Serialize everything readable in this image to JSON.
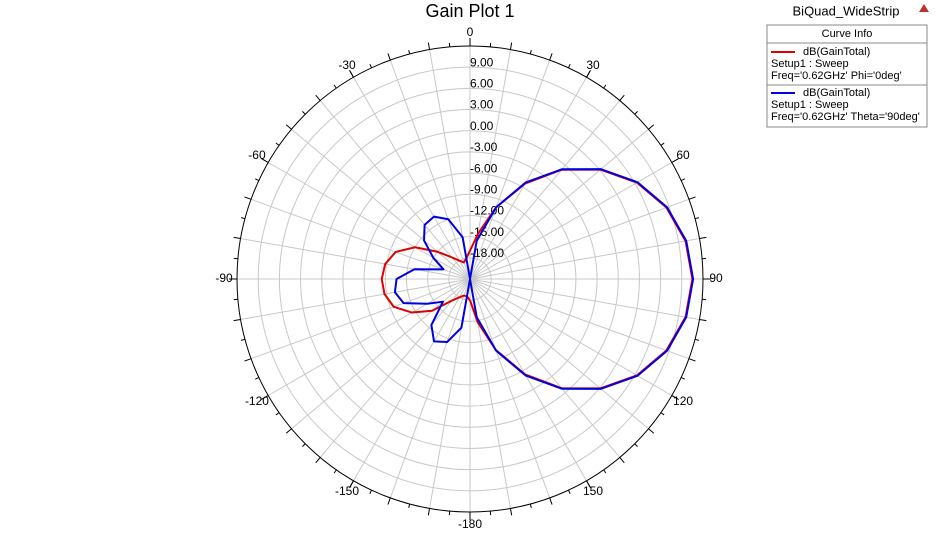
{
  "chart_data": {
    "type": "polar",
    "title": "Gain Plot 1",
    "project": "BiQuad_WideStrip",
    "legend_title": "Curve Info",
    "x": [
      -180,
      -170,
      -160,
      -150,
      -140,
      -130,
      -120,
      -110,
      -100,
      -90,
      -80,
      -70,
      -60,
      -50,
      -40,
      -30,
      -20,
      -10,
      0,
      10,
      20,
      30,
      40,
      50,
      60,
      70,
      80,
      90,
      100,
      110,
      120,
      130,
      140,
      150,
      160,
      170,
      180
    ],
    "series": [
      {
        "name": "dB(GainTotal)",
        "setup": "Setup1 : Sweep",
        "freq": "Freq='0.62GHz' Phi='0deg'",
        "color": "#e00000",
        "values": [
          -18,
          -18.5,
          -18.5,
          -18,
          -17,
          -14,
          -11.5,
          -9.5,
          -8.7,
          -8.5,
          -8.8,
          -9.8,
          -12,
          -15,
          -17,
          -18,
          -18.5,
          -18,
          -17,
          -14.5,
          -10.2,
          -5.4,
          -0.8,
          3.1,
          6.3,
          8.6,
          10.0,
          10.5,
          10.0,
          8.6,
          6.3,
          3.1,
          -0.8,
          -5.4,
          -10.3,
          -14.8,
          -18
        ]
      },
      {
        "name": "dB(GainTotal)",
        "setup": "Setup1 : Sweep",
        "freq": "Freq='0.62GHz' Theta='90deg'",
        "color": "#0000e0",
        "values": [
          -21,
          -14,
          -11.5,
          -10.8,
          -12.5,
          -16,
          -14,
          -11,
          -10.2,
          -10.6,
          -13,
          -17,
          -15,
          -12.5,
          -11,
          -10.8,
          -12,
          -15,
          -21,
          -15.5,
          -10.2,
          -5.2,
          -0.7,
          3.2,
          6.4,
          8.7,
          10.1,
          10.6,
          10.1,
          8.7,
          6.4,
          3.2,
          -0.7,
          -5.2,
          -10.2,
          -15.5,
          -21
        ]
      }
    ],
    "rlim": [
      -21,
      12
    ],
    "rticks": [
      {
        "value": -18,
        "label": "-18.00"
      },
      {
        "value": -15,
        "label": "-15.00"
      },
      {
        "value": -12,
        "label": "-12.00"
      },
      {
        "value": -9,
        "label": "-9.00"
      },
      {
        "value": -6,
        "label": "-6.00"
      },
      {
        "value": -3,
        "label": "-3.00"
      },
      {
        "value": 0,
        "label": "0.00"
      },
      {
        "value": 3,
        "label": "3.00"
      },
      {
        "value": 6,
        "label": "6.00"
      },
      {
        "value": 9,
        "label": "9.00"
      }
    ],
    "xticks": [
      0,
      30,
      60,
      90,
      120,
      150,
      -180,
      -150,
      -120,
      -90,
      -60,
      -30
    ]
  }
}
